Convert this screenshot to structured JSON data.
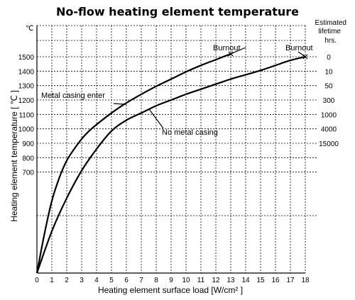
{
  "chart_data": {
    "type": "line",
    "title": "No-flow heating element temperature",
    "xlabel": "Heating element surface load [W/cm² ]",
    "ylabel": "Heating element temperature [ ℃ ]",
    "y_unit": "℃",
    "right_axis_label": [
      "Estimated",
      "lifetime",
      "hrs."
    ],
    "xlim": [
      0,
      18
    ],
    "ylim": [
      0,
      1500
    ],
    "x_ticks": [
      "0",
      "1",
      "2",
      "3",
      "4",
      "5",
      "6",
      "7",
      "8",
      "9",
      "10",
      "11",
      "12",
      "13",
      "14",
      "15",
      "16",
      "17",
      "18"
    ],
    "y_ticks": [
      "700",
      "800",
      "900",
      "1000",
      "1100",
      "1200",
      "1300",
      "1400",
      "1500"
    ],
    "right_ticks": [
      "0",
      "10",
      "50",
      "300",
      "1000",
      "4000",
      "15000"
    ],
    "grid": true,
    "series": [
      {
        "name": "Metal casing enter",
        "x": [
          0,
          0.5,
          1,
          1.5,
          2,
          2.5,
          3,
          3.5,
          4,
          5,
          6,
          7,
          8,
          9,
          10,
          11,
          12,
          13
        ],
        "y": [
          0,
          270,
          500,
          660,
          780,
          860,
          930,
          985,
          1030,
          1110,
          1180,
          1240,
          1295,
          1345,
          1395,
          1440,
          1480,
          1520
        ]
      },
      {
        "name": "No metal casing",
        "x": [
          0,
          1,
          2,
          3,
          4,
          5,
          6,
          7,
          8,
          9,
          10,
          11,
          12,
          13,
          14,
          15,
          16,
          17,
          18
        ],
        "y": [
          0,
          290,
          520,
          710,
          860,
          985,
          1060,
          1110,
          1160,
          1200,
          1240,
          1275,
          1310,
          1345,
          1375,
          1405,
          1440,
          1475,
          1500
        ]
      }
    ],
    "annotations": [
      {
        "text": "Burnout",
        "series": "Metal casing enter"
      },
      {
        "text": "Burnout",
        "series": "No metal casing"
      },
      {
        "text": "Metal casing enter"
      },
      {
        "text": "No metal casing"
      }
    ]
  }
}
